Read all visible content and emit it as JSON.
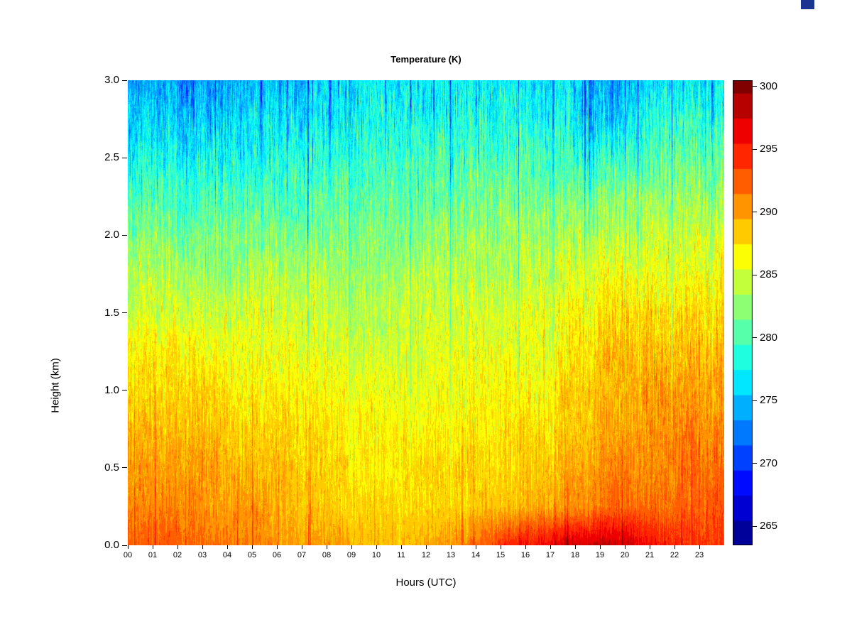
{
  "ui": {
    "corner_artifact_color": "#1a3690"
  },
  "chart_data": {
    "type": "heatmap",
    "title": "Temperature (K)",
    "xlabel": "Hours (UTC)",
    "ylabel": "Height (km)",
    "x_ticks": [
      "00",
      "01",
      "02",
      "03",
      "04",
      "05",
      "06",
      "07",
      "08",
      "09",
      "10",
      "11",
      "12",
      "13",
      "14",
      "15",
      "16",
      "17",
      "18",
      "19",
      "20",
      "21",
      "22",
      "23"
    ],
    "y_ticks": [
      "0.0",
      "0.5",
      "1.0",
      "1.5",
      "2.0",
      "2.5",
      "3.0"
    ],
    "y_axis_range_km": [
      0,
      3
    ],
    "x_axis_range_hours": [
      0,
      24
    ],
    "colorbar": {
      "label_ticks": [
        265,
        270,
        275,
        280,
        285,
        290,
        295,
        300
      ],
      "min": 263.5,
      "max": 300.5,
      "band_step": 2,
      "colormap": "jet"
    },
    "grid": {
      "hours": [
        0,
        1,
        2,
        3,
        4,
        5,
        6,
        7,
        8,
        9,
        10,
        11,
        12,
        13,
        14,
        15,
        16,
        17,
        18,
        19,
        20,
        21,
        22,
        23
      ],
      "heights_km": [
        0,
        0.25,
        0.5,
        0.75,
        1,
        1.25,
        1.5,
        1.75,
        2,
        2.25,
        2.5,
        2.75,
        3
      ],
      "values": [
        [
          292,
          293,
          292,
          292,
          291,
          291,
          290,
          290,
          290,
          289,
          289,
          289,
          290,
          291,
          293,
          295,
          296,
          297,
          298,
          298,
          297,
          295,
          294,
          294
        ],
        [
          291,
          291,
          291,
          290,
          290,
          290,
          289,
          289,
          288,
          288,
          288,
          288,
          288,
          288,
          289,
          289,
          290,
          290,
          291,
          292,
          292,
          292,
          292,
          293
        ],
        [
          290,
          290,
          290,
          290,
          289,
          289,
          289,
          288,
          288,
          287,
          287,
          288,
          288,
          288,
          288,
          288,
          289,
          289,
          290,
          291,
          291,
          291,
          292,
          292
        ],
        [
          289,
          289,
          289,
          289,
          288,
          288,
          288,
          288,
          287,
          287,
          287,
          287,
          287,
          287,
          287,
          288,
          288,
          288,
          289,
          290,
          290,
          291,
          291,
          291
        ],
        [
          288,
          288,
          288,
          288,
          287,
          287,
          287,
          287,
          286,
          286,
          286,
          286,
          286,
          286,
          287,
          287,
          287,
          288,
          289,
          289,
          290,
          290,
          290,
          290
        ],
        [
          287,
          287,
          287,
          286,
          286,
          286,
          286,
          286,
          285,
          285,
          285,
          285,
          286,
          286,
          286,
          286,
          286,
          287,
          288,
          289,
          289,
          289,
          289,
          289
        ],
        [
          285,
          285,
          285,
          285,
          285,
          285,
          285,
          285,
          284,
          284,
          284,
          285,
          285,
          285,
          285,
          285,
          286,
          286,
          287,
          288,
          288,
          288,
          288,
          288
        ],
        [
          284,
          284,
          283,
          283,
          283,
          284,
          284,
          284,
          283,
          283,
          283,
          284,
          284,
          284,
          284,
          284,
          285,
          285,
          286,
          286,
          286,
          286,
          286,
          287
        ],
        [
          282,
          282,
          281,
          282,
          282,
          282,
          282,
          282,
          282,
          282,
          282,
          282,
          283,
          283,
          283,
          283,
          283,
          284,
          284,
          284,
          284,
          285,
          285,
          285
        ],
        [
          280,
          280,
          279,
          280,
          280,
          280,
          280,
          281,
          281,
          281,
          281,
          281,
          281,
          281,
          282,
          282,
          282,
          282,
          282,
          282,
          283,
          283,
          283,
          283
        ],
        [
          278,
          278,
          277,
          278,
          278,
          278,
          279,
          279,
          279,
          279,
          280,
          280,
          280,
          280,
          280,
          280,
          280,
          280,
          279,
          279,
          280,
          281,
          281,
          281
        ],
        [
          276,
          276,
          275,
          276,
          276,
          277,
          277,
          277,
          277,
          278,
          278,
          278,
          278,
          278,
          278,
          278,
          278,
          278,
          277,
          275,
          278,
          279,
          279,
          279
        ],
        [
          274,
          274,
          273,
          274,
          275,
          275,
          275,
          276,
          276,
          277,
          277,
          277,
          277,
          277,
          277,
          277,
          277,
          277,
          276,
          273,
          276,
          277,
          277,
          277
        ]
      ]
    },
    "noise_seed": 42
  }
}
